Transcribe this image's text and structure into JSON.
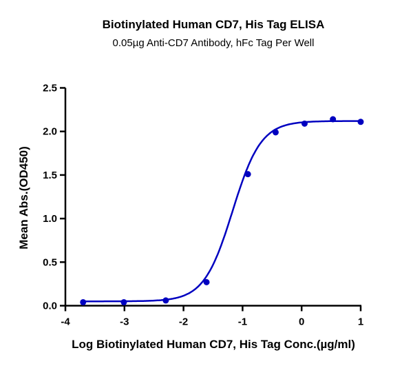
{
  "chart_data": {
    "type": "line",
    "title": "Biotinylated Human CD7, His Tag ELISA",
    "subtitle": "0.05µg Anti-CD7 Antibody, hFc Tag Per Well",
    "xlabel": "Log Biotinylated Human CD7, His Tag Conc.(µg/ml)",
    "ylabel": "Mean Abs.(OD450)",
    "xlim": [
      -4,
      1
    ],
    "ylim": [
      0,
      2.5
    ],
    "xticks": [
      "-4",
      "-3",
      "-2",
      "-1",
      "0",
      "1"
    ],
    "yticks": [
      "0.0",
      "0.5",
      "1.0",
      "1.5",
      "2.0",
      "2.5"
    ],
    "grid": false,
    "color": "#0000c0",
    "series": [
      {
        "name": "Mean Abs.",
        "x": [
          -3.7,
          -3.01,
          -2.3,
          -1.61,
          -0.91,
          -0.44,
          0.05,
          0.53,
          1.0
        ],
        "y": [
          0.04,
          0.04,
          0.06,
          0.27,
          1.51,
          1.99,
          2.09,
          2.14,
          2.11
        ]
      }
    ],
    "fit": {
      "model": "4PL",
      "bottom": 0.05,
      "top": 2.12,
      "logEC50": -1.17,
      "hill": 1.8
    }
  }
}
